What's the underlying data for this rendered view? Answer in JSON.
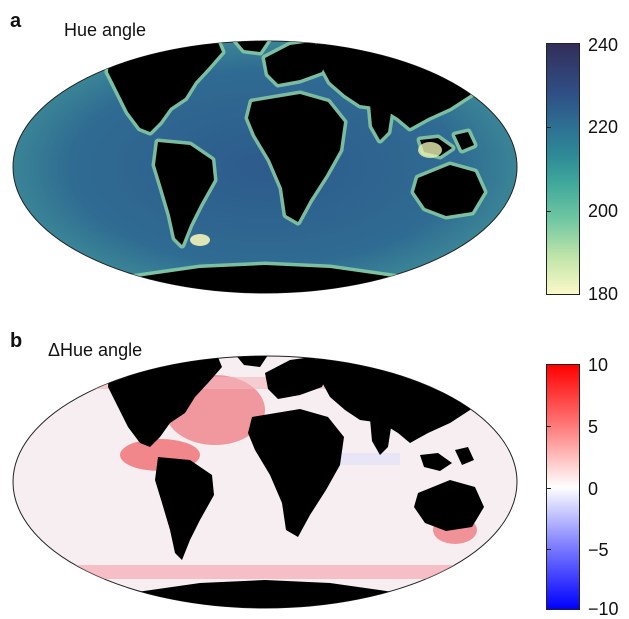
{
  "panel_a": {
    "letter": "a",
    "title": "Hue angle",
    "colorbar_ticks": [
      "240",
      "220",
      "200",
      "180"
    ],
    "colorbar_range": [
      180,
      240
    ],
    "colors": {
      "ocean": "#2f4f86",
      "coast": "#6fc7a2",
      "land": "#000000"
    }
  },
  "panel_b": {
    "letter": "b",
    "title": "ΔHue angle",
    "colorbar_ticks": [
      "10",
      "5",
      "0",
      "−5",
      "−10"
    ],
    "colorbar_range": [
      -10,
      10
    ],
    "colors": {
      "ocean": "#f3e6ea",
      "positive": "#ff0000",
      "negative": "#0000ff",
      "land": "#000000"
    }
  }
}
